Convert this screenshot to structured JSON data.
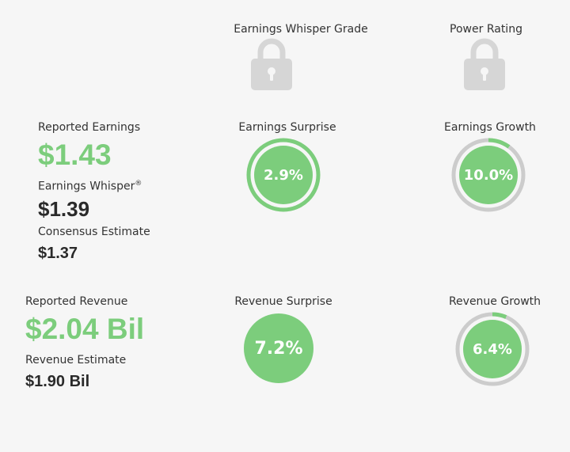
{
  "grades": {
    "whisper_grade_label": "Earnings Whisper Grade",
    "power_rating_label": "Power Rating",
    "lock_icon": "lock-icon"
  },
  "earnings": {
    "reported_label": "Reported Earnings",
    "reported_value": "$1.43",
    "whisper_label": "Earnings Whisper",
    "whisper_mark": "®",
    "whisper_value": "$1.39",
    "consensus_label": "Consensus Estimate",
    "consensus_value": "$1.37",
    "surprise_label": "Earnings Surprise",
    "surprise_value": "2.9%",
    "surprise_fraction": 1.0,
    "growth_label": "Earnings Growth",
    "growth_value": "10.0%",
    "growth_fraction": 0.1
  },
  "revenue": {
    "reported_label": "Reported Revenue",
    "reported_value": "$2.04 Bil",
    "estimate_label": "Revenue Estimate",
    "estimate_value": "$1.90 Bil",
    "surprise_label": "Revenue Surprise",
    "surprise_value": "7.2%",
    "growth_label": "Revenue Growth",
    "growth_value": "6.4%",
    "growth_fraction": 0.064
  },
  "colors": {
    "green": "#7ccd7c",
    "gray_ring": "#cccccc",
    "lock_gray": "#d6d6d6",
    "background": "#f6f6f6"
  }
}
